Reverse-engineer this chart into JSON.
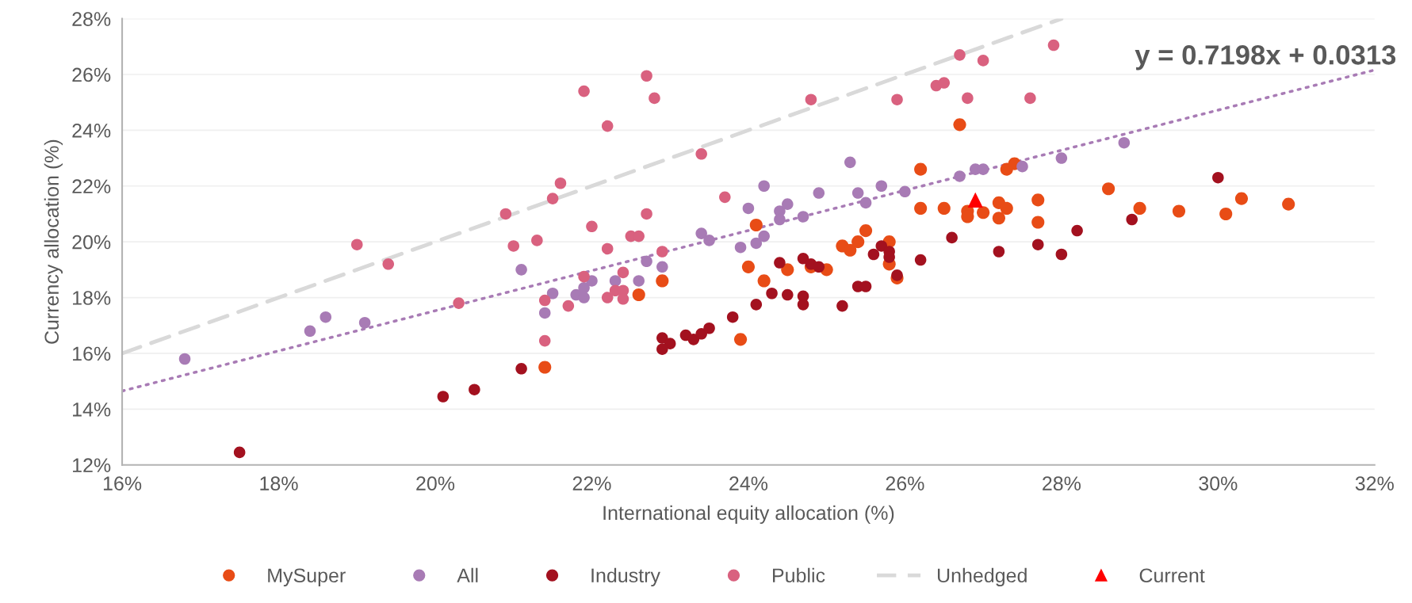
{
  "chart_data": {
    "type": "scatter",
    "xlabel": "International equity allocation (%)",
    "ylabel": "Currency allocation (%)",
    "xlim": [
      16,
      32
    ],
    "ylim": [
      12,
      28
    ],
    "xticks": [
      {
        "value": 16,
        "label": "16%"
      },
      {
        "value": 18,
        "label": "18%"
      },
      {
        "value": 20,
        "label": "20%"
      },
      {
        "value": 22,
        "label": "22%"
      },
      {
        "value": 24,
        "label": "24%"
      },
      {
        "value": 26,
        "label": "26%"
      },
      {
        "value": 28,
        "label": "28%"
      },
      {
        "value": 30,
        "label": "30%"
      },
      {
        "value": 32,
        "label": "32%"
      }
    ],
    "yticks": [
      {
        "value": 12,
        "label": "12%"
      },
      {
        "value": 14,
        "label": "14%"
      },
      {
        "value": 16,
        "label": "16%"
      },
      {
        "value": 18,
        "label": "18%"
      },
      {
        "value": 20,
        "label": "20%"
      },
      {
        "value": 22,
        "label": "22%"
      },
      {
        "value": 24,
        "label": "24%"
      },
      {
        "value": 26,
        "label": "26%"
      },
      {
        "value": 28,
        "label": "28%"
      }
    ],
    "grid": "y",
    "legend": "bottom",
    "marker": "circle",
    "annotations": [
      "y = 0.7198x + 0.0313"
    ],
    "series": [
      {
        "name": "MySuper",
        "color": "#e84c16",
        "x": [
          21.4,
          22.6,
          22.9,
          23.9,
          24.0,
          24.1,
          24.2,
          24.5,
          24.8,
          25.0,
          25.2,
          25.3,
          25.4,
          25.5,
          25.8,
          25.8,
          25.9,
          26.2,
          26.2,
          26.5,
          26.7,
          26.8,
          26.8,
          27.0,
          27.2,
          27.3,
          27.2,
          27.3,
          27.4,
          27.7,
          27.7,
          28.6,
          29.0,
          29.5,
          30.1,
          30.3,
          30.9
        ],
        "values": [
          15.5,
          18.1,
          18.6,
          16.5,
          19.1,
          20.6,
          18.6,
          19.0,
          19.1,
          19.0,
          19.85,
          19.7,
          20.0,
          20.4,
          20.0,
          19.2,
          18.7,
          22.6,
          21.2,
          21.2,
          24.2,
          21.1,
          20.9,
          21.05,
          21.4,
          21.2,
          20.85,
          22.6,
          22.8,
          21.5,
          20.7,
          21.9,
          21.2,
          21.1,
          21.0,
          21.55,
          21.35
        ]
      },
      {
        "name": "All",
        "color": "#a87bb5",
        "x": [
          16.8,
          18.4,
          18.6,
          19.1,
          21.1,
          21.4,
          21.5,
          21.8,
          21.9,
          21.9,
          22.0,
          22.3,
          22.6,
          22.7,
          22.9,
          23.4,
          23.5,
          23.9,
          24.0,
          24.1,
          24.2,
          24.2,
          24.4,
          24.4,
          24.5,
          24.7,
          24.9,
          25.3,
          25.4,
          25.5,
          25.7,
          26.0,
          26.7,
          26.9,
          27.0,
          27.5,
          28.0,
          28.8
        ],
        "values": [
          15.8,
          16.8,
          17.3,
          17.1,
          19.0,
          17.45,
          18.15,
          18.1,
          18.35,
          18.0,
          18.6,
          18.6,
          18.6,
          19.3,
          19.1,
          20.3,
          20.05,
          19.8,
          21.2,
          19.95,
          22.0,
          20.2,
          21.1,
          20.8,
          21.35,
          20.9,
          21.75,
          22.85,
          21.75,
          21.4,
          22.0,
          21.8,
          22.35,
          22.6,
          22.6,
          22.7,
          23.0,
          23.55
        ]
      },
      {
        "name": "Industry",
        "color": "#a3111f",
        "x": [
          17.5,
          20.1,
          20.5,
          21.1,
          22.9,
          23.0,
          22.9,
          23.2,
          23.3,
          23.4,
          23.5,
          23.8,
          24.1,
          24.3,
          24.4,
          24.5,
          24.7,
          24.7,
          24.7,
          24.8,
          24.9,
          25.2,
          25.4,
          25.5,
          25.6,
          25.7,
          25.8,
          25.8,
          25.9,
          26.2,
          26.6,
          27.2,
          27.7,
          28.0,
          28.2,
          28.9,
          30.0
        ],
        "values": [
          12.45,
          14.45,
          14.7,
          15.45,
          16.55,
          16.35,
          16.15,
          16.65,
          16.5,
          16.7,
          16.9,
          17.3,
          17.75,
          18.15,
          19.25,
          18.1,
          18.05,
          17.75,
          19.4,
          19.2,
          19.1,
          17.7,
          18.4,
          18.4,
          19.55,
          19.85,
          19.65,
          19.45,
          18.8,
          19.35,
          20.15,
          19.65,
          19.9,
          19.55,
          20.4,
          20.8,
          22.3
        ]
      },
      {
        "name": "Public",
        "color": "#d9617f",
        "x": [
          19.0,
          19.4,
          20.3,
          20.9,
          21.0,
          21.3,
          21.4,
          21.4,
          21.5,
          21.6,
          21.7,
          21.9,
          21.9,
          22.0,
          22.2,
          22.2,
          22.2,
          22.3,
          22.4,
          22.4,
          22.4,
          22.5,
          22.6,
          22.7,
          22.7,
          22.8,
          22.9,
          23.4,
          23.7,
          24.8,
          25.9,
          26.4,
          26.5,
          26.7,
          26.8,
          27.0,
          27.6,
          27.9
        ],
        "values": [
          19.9,
          19.2,
          17.8,
          21.0,
          19.85,
          20.05,
          17.9,
          16.45,
          21.55,
          22.1,
          17.7,
          18.75,
          25.4,
          20.55,
          19.75,
          18.0,
          24.15,
          18.25,
          18.25,
          17.95,
          18.9,
          20.2,
          20.2,
          21.0,
          25.95,
          25.15,
          19.65,
          23.15,
          21.6,
          25.1,
          25.1,
          25.6,
          25.7,
          26.7,
          25.15,
          26.5,
          25.15,
          27.05
        ]
      },
      {
        "name": "Unhedged",
        "type": "line",
        "color": "#d9d9d9",
        "line_style": "dashed",
        "marker": "none",
        "x": [
          16,
          28
        ],
        "values": [
          16,
          28
        ]
      },
      {
        "name": "Current",
        "color": "#ff0000",
        "marker": "triangle",
        "x": [
          26.9
        ],
        "values": [
          21.5
        ]
      },
      {
        "type": "line",
        "color": "#a87bb5",
        "line_style": "dotted",
        "marker": "none",
        "x": [
          16,
          32
        ],
        "values": [
          14.65,
          26.16
        ]
      }
    ]
  }
}
